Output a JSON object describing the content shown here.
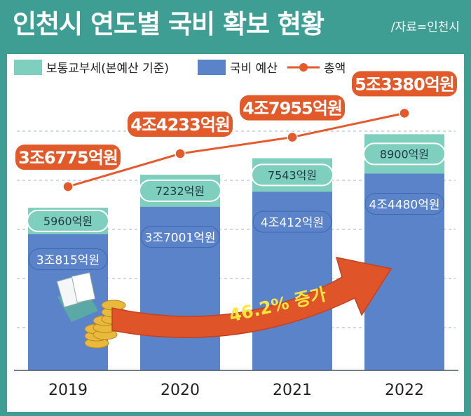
{
  "title": "인천시 연도별 국비 확보 현황",
  "source": "/자료=인천시",
  "colors": {
    "frame": "#3e9e93",
    "base_bar": "#5b83c9",
    "grant_bar": "#7fcfbf",
    "total_line": "#e5592a",
    "total_label_bg": "#e35a2a",
    "arrow": "#e0542a",
    "arrow_text": "#ffe53d"
  },
  "legend": {
    "grant": "보통교부세(본예산 기준)",
    "base": "국비 예산",
    "total": "총액"
  },
  "annotation": "46.2% 증가",
  "decoration": {
    "illustration": "coins-and-documents-icon"
  },
  "chart_data": {
    "type": "bar",
    "stacked": true,
    "categories": [
      "2019",
      "2020",
      "2021",
      "2022"
    ],
    "series": [
      {
        "name": "국비 예산",
        "values": [
          30815,
          37001,
          40412,
          44480
        ],
        "labels": [
          "3조815억원",
          "3조7001억원",
          "4조412억원",
          "4조4480억원"
        ]
      },
      {
        "name": "보통교부세(본예산 기준)",
        "values": [
          5960,
          7232,
          7543,
          8900
        ],
        "labels": [
          "5960억원",
          "7232억원",
          "7543억원",
          "8900억원"
        ]
      }
    ],
    "totals": {
      "name": "총액",
      "values": [
        36775,
        44233,
        47955,
        53380
      ],
      "labels": [
        "3조6775억원",
        "4조4233억원",
        "4조7955억원",
        "5조3380억원"
      ]
    },
    "unit": "억원",
    "ylim": [
      0,
      62000
    ],
    "grid": true,
    "legend_position": "top-left"
  }
}
